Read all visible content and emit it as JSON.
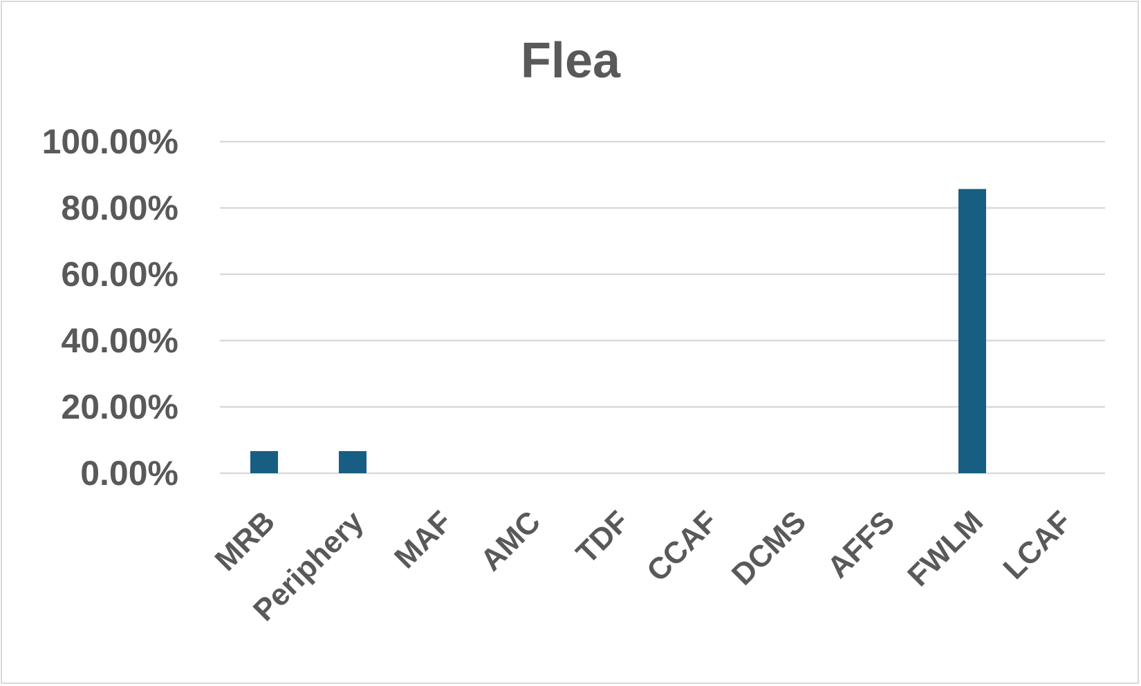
{
  "chart_data": {
    "type": "bar",
    "title": "Flea",
    "xlabel": "",
    "ylabel": "",
    "categories": [
      "MRB",
      "Periphery",
      "MAF",
      "AMC",
      "TDF",
      "CCAF",
      "DCMS",
      "AFFS",
      "FWLM",
      "LCAF"
    ],
    "values": [
      0.0667,
      0.0667,
      0,
      0,
      0,
      0,
      0,
      0,
      0.8571,
      0
    ],
    "ylim": [
      0,
      1
    ],
    "yticks": [
      0,
      0.2,
      0.4,
      0.6,
      0.8,
      1.0
    ],
    "ytick_labels": [
      "0.00%",
      "20.00%",
      "40.00%",
      "60.00%",
      "80.00%",
      "100.00%"
    ],
    "grid": true,
    "legend": "none",
    "colors": {
      "bar": "#175e82",
      "grid": "#d9d9d9",
      "text": "#595959"
    }
  }
}
